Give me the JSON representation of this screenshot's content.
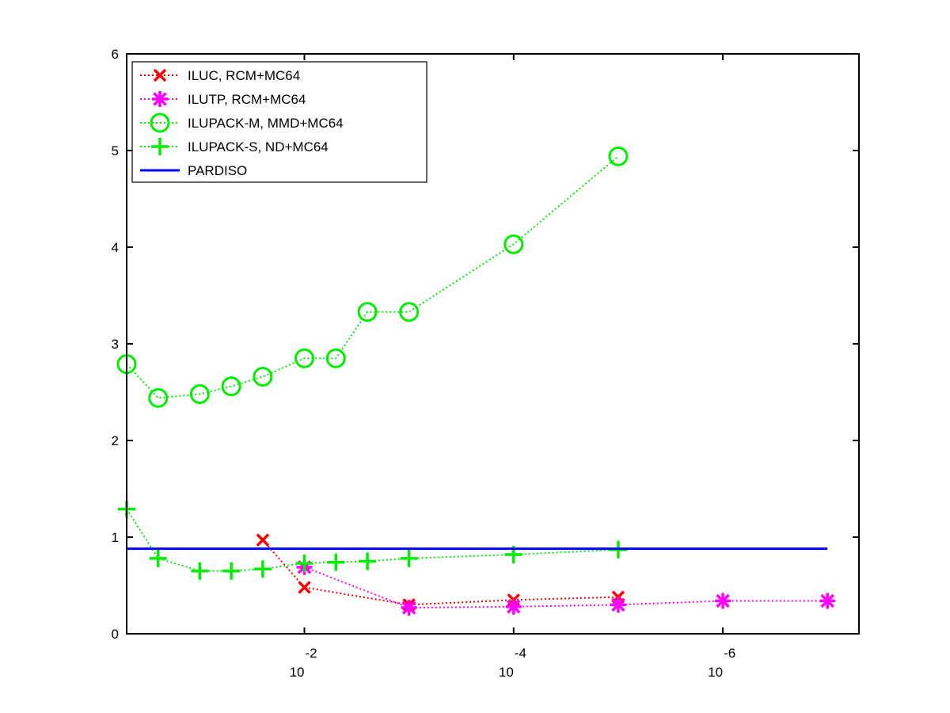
{
  "chart_data": {
    "type": "line",
    "title": "",
    "xlabel": "",
    "ylabel": "",
    "x_scale": "log",
    "x_direction": "decreasing",
    "x_tick_labels": [
      {
        "value": 0.01,
        "base": "10",
        "exponent": "-2"
      },
      {
        "value": 0.0001,
        "base": "10",
        "exponent": "-4"
      },
      {
        "value": 1e-06,
        "base": "10",
        "exponent": "-6"
      }
    ],
    "xlim": [
      0.5,
      5e-08
    ],
    "ylim": [
      0,
      6
    ],
    "y_ticks": [
      0,
      1,
      2,
      3,
      4,
      5,
      6
    ],
    "grid": false,
    "legend_position": "top-left",
    "series": [
      {
        "name": "ILUC, RCM+MC64",
        "color": "#ff0000",
        "marker": "x",
        "line_style": "dotted",
        "points": [
          [
            0.025,
            0.97
          ],
          [
            0.01,
            0.48
          ],
          [
            0.001,
            0.3
          ],
          [
            0.0001,
            0.35
          ],
          [
            1e-05,
            0.38
          ]
        ]
      },
      {
        "name": "ILUTP, RCM+MC64",
        "color": "#ff00ff",
        "marker": "asterisk",
        "line_style": "dotted",
        "points": [
          [
            0.01,
            0.69
          ],
          [
            0.001,
            0.27
          ],
          [
            0.0001,
            0.28
          ],
          [
            1e-05,
            0.3
          ],
          [
            1e-06,
            0.34
          ],
          [
            1e-07,
            0.34
          ]
        ]
      },
      {
        "name": "ILUPACK-M, MMD+MC64",
        "color": "#00ee00",
        "marker": "circle",
        "line_style": "dotted",
        "points": [
          [
            0.5,
            2.79
          ],
          [
            0.25,
            2.44
          ],
          [
            0.1,
            2.48
          ],
          [
            0.05,
            2.56
          ],
          [
            0.025,
            2.66
          ],
          [
            0.01,
            2.85
          ],
          [
            0.005,
            2.85
          ],
          [
            0.0025,
            3.33
          ],
          [
            0.001,
            3.33
          ],
          [
            0.0001,
            4.03
          ],
          [
            1e-05,
            4.94
          ]
        ]
      },
      {
        "name": "ILUPACK-S, ND+MC64",
        "color": "#00ee00",
        "marker": "plus",
        "line_style": "dotted",
        "points": [
          [
            0.5,
            1.29
          ],
          [
            0.25,
            0.78
          ],
          [
            0.1,
            0.65
          ],
          [
            0.05,
            0.65
          ],
          [
            0.025,
            0.67
          ],
          [
            0.01,
            0.73
          ],
          [
            0.005,
            0.74
          ],
          [
            0.0025,
            0.75
          ],
          [
            0.001,
            0.78
          ],
          [
            0.0001,
            0.82
          ],
          [
            1e-05,
            0.87
          ]
        ]
      },
      {
        "name": "PARDISO",
        "color": "#0000ff",
        "marker": "none",
        "line_style": "solid",
        "points": [
          [
            0.5,
            0.88
          ],
          [
            1e-07,
            0.88
          ]
        ]
      }
    ]
  }
}
